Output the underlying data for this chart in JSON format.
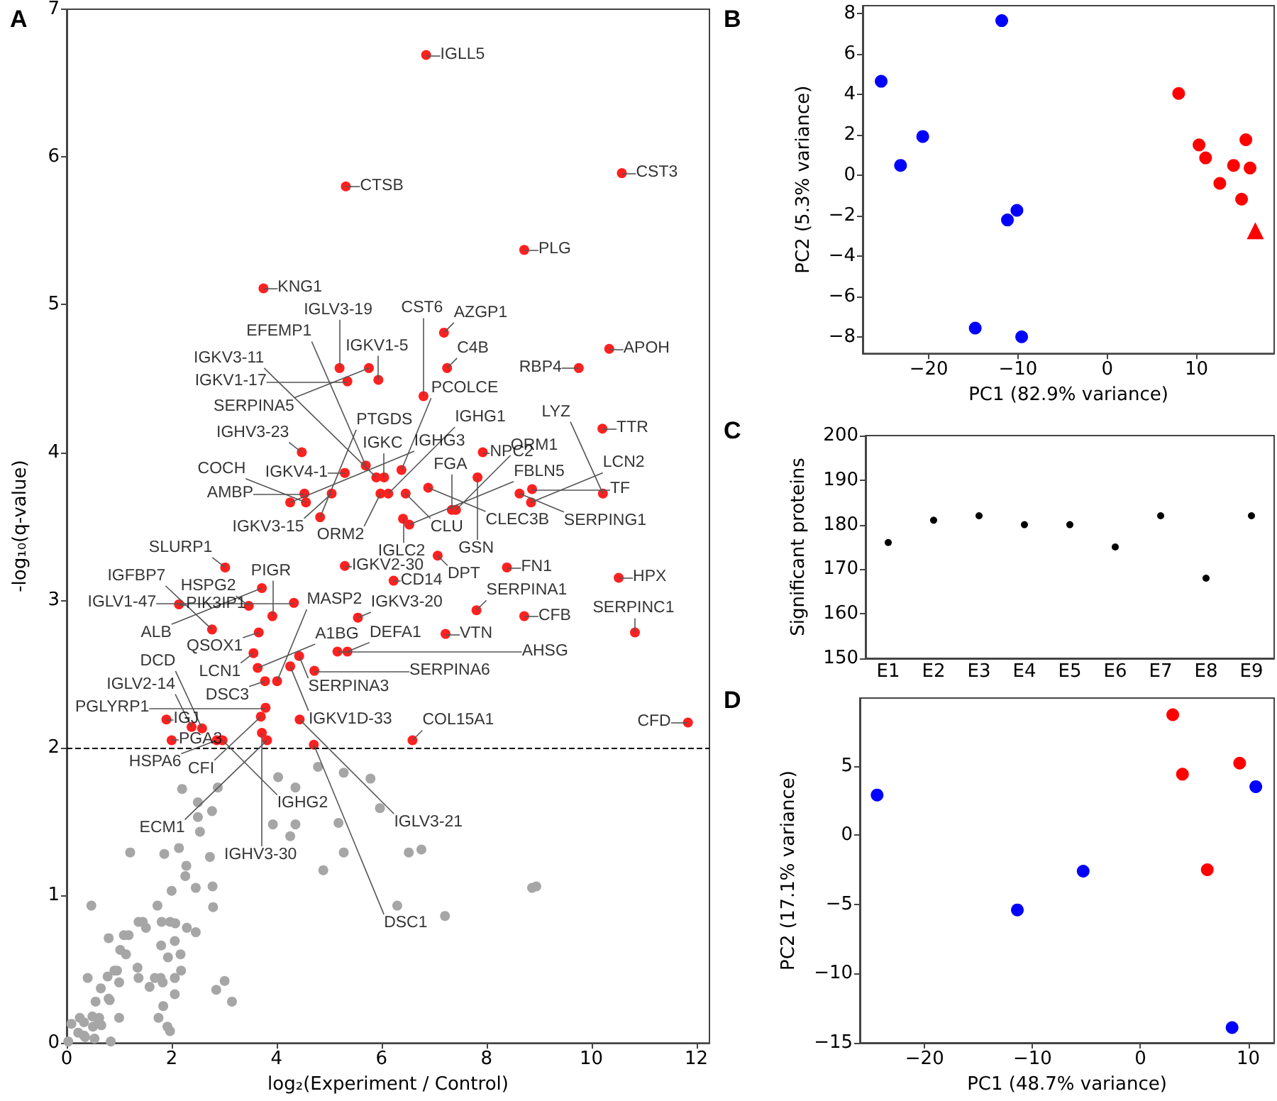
{
  "chart_data": [
    {
      "type": "scatter",
      "title": "A",
      "xlabel": "log₂(Experiment / Control)",
      "ylabel": "-log₁₀(q-value)",
      "xlim": [
        0,
        12.25
      ],
      "ylim": [
        0,
        7
      ],
      "xticks": [
        0,
        2,
        4,
        6,
        8,
        10,
        12
      ],
      "yticks": [
        0,
        1,
        2,
        3,
        4,
        5,
        6,
        7
      ],
      "marker": "circle",
      "series": [
        {
          "color": "#a6a6a6",
          "x": [
            4.79,
            4.03,
            4.36,
            2.88,
            2.2,
            2.5,
            2.77,
            2.5,
            5.28,
            5.79,
            5.97,
            3.93,
            4.36,
            5.18,
            4.26,
            2.54,
            1.21,
            1.86,
            2.14,
            2.73,
            2.28,
            2.26,
            4.89,
            5.28,
            6.52,
            6.76,
            2.0,
            2.46,
            2.78,
            0.47,
            1.73,
            2.79,
            8.87,
            8.95,
            6.3,
            7.21,
            0.8,
            1.09,
            1.18,
            1.37,
            1.45,
            1.51,
            1.02,
            1.13,
            1.81,
            1.97,
            2.07,
            2.29,
            2.46,
            1.8,
            2.06,
            1.93,
            2.17,
            2.18,
            2.06,
            0.4,
            0.65,
            0.55,
            0.78,
            0.82,
            0.91,
            0.96,
            1.0,
            1.35,
            1.37,
            1.58,
            1.68,
            1.79,
            1.83,
            2.06,
            2.85,
            3.01,
            3.15,
            1.75,
            1.84,
            1.92,
            1.97,
            1.0,
            0.8,
            0.09,
            0.25,
            0.33,
            0.22,
            0.49,
            0.61,
            0.33,
            0.5,
            0.62,
            0.66,
            0.35,
            0.84,
            0.03,
            0.53
          ],
          "values": [
            1.87,
            1.8,
            1.73,
            1.73,
            1.72,
            1.63,
            1.57,
            1.53,
            1.83,
            1.79,
            1.59,
            1.48,
            1.48,
            1.49,
            1.4,
            1.43,
            1.29,
            1.28,
            1.32,
            1.26,
            1.2,
            1.13,
            1.17,
            1.29,
            1.29,
            1.31,
            1.03,
            1.05,
            1.06,
            0.93,
            0.93,
            0.92,
            1.05,
            1.06,
            0.93,
            0.86,
            0.71,
            0.73,
            0.73,
            0.82,
            0.82,
            0.78,
            0.63,
            0.6,
            0.82,
            0.82,
            0.81,
            0.78,
            0.75,
            0.66,
            0.69,
            0.58,
            0.6,
            0.49,
            0.44,
            0.44,
            0.37,
            0.28,
            0.45,
            0.29,
            0.49,
            0.49,
            0.41,
            0.51,
            0.44,
            0.38,
            0.44,
            0.44,
            0.41,
            0.33,
            0.36,
            0.42,
            0.28,
            0.17,
            0.25,
            0.11,
            0.08,
            0.17,
            0.3,
            0.13,
            0.17,
            0.14,
            0.07,
            0.18,
            0.15,
            0.05,
            0.11,
            0.17,
            0.12,
            0.04,
            0.01,
            0.01,
            0.03
          ]
        },
        {
          "color": "#ff2020",
          "x": [
            6.85,
            5.32,
            10.58,
            8.72,
            3.75,
            7.19,
            10.34,
            5.2,
            5.76,
            5.94,
            5.35,
            7.25,
            9.76,
            6.8,
            10.21,
            4.48,
            5.9,
            5.7,
            6.05,
            6.38,
            7.93,
            5.3,
            5.05,
            4.53,
            5.98,
            6.13,
            6.46,
            6.89,
            7.83,
            8.87,
            8.63,
            10.22,
            8.85,
            4.26,
            4.56,
            4.83,
            7.34,
            7.42,
            6.41,
            6.53,
            7.07,
            8.39,
            10.52,
            5.3,
            6.23,
            3.02,
            3.72,
            4.33,
            2.14,
            3.47,
            2.77,
            3.92,
            5.55,
            7.81,
            8.72,
            10.83,
            7.22,
            3.66,
            5.16,
            5.35,
            4.43,
            3.56,
            3.64,
            4.26,
            4.72,
            3.78,
            4.01,
            3.79,
            3.7,
            4.44,
            1.9,
            11.84,
            2.86,
            2.97,
            2.38,
            2.58,
            2.0,
            3.72,
            3.82,
            4.71,
            6.59
          ],
          "values": [
            6.69,
            5.8,
            5.89,
            5.37,
            5.11,
            4.81,
            4.7,
            4.57,
            4.57,
            4.49,
            4.48,
            4.57,
            4.57,
            4.38,
            4.16,
            4.0,
            3.83,
            3.91,
            3.83,
            3.88,
            4.0,
            3.86,
            3.72,
            3.72,
            3.72,
            3.72,
            3.72,
            3.76,
            3.83,
            3.75,
            3.72,
            3.72,
            3.66,
            3.66,
            3.66,
            3.56,
            3.61,
            3.61,
            3.55,
            3.51,
            3.3,
            3.22,
            3.15,
            3.23,
            3.13,
            3.22,
            3.08,
            2.98,
            2.97,
            2.96,
            2.8,
            2.89,
            2.88,
            2.93,
            2.89,
            2.78,
            2.77,
            2.78,
            2.65,
            2.65,
            2.62,
            2.64,
            2.54,
            2.55,
            2.52,
            2.45,
            2.45,
            2.27,
            2.21,
            2.19,
            2.19,
            2.17,
            2.05,
            2.05,
            2.14,
            2.13,
            2.05,
            2.1,
            2.05,
            2.02,
            2.05
          ]
        }
      ],
      "ref_lines": [
        {
          "axis": "y",
          "value": 2,
          "color": "#000000",
          "line_style": "dashed"
        }
      ],
      "annotations": [
        {
          "text": "IGLL5",
          "x": 6.85,
          "y": 6.69
        },
        {
          "text": "CTSB",
          "x": 5.32,
          "y": 5.8
        },
        {
          "text": "CST3",
          "x": 10.58,
          "y": 5.89
        },
        {
          "text": "PLG",
          "x": 8.72,
          "y": 5.37
        },
        {
          "text": "KNG1",
          "x": 3.75,
          "y": 5.11
        },
        {
          "text": "AZGP1",
          "x": 7.19,
          "y": 4.81
        },
        {
          "text": "APOH",
          "x": 10.34,
          "y": 4.7
        },
        {
          "text": "IGLV3-19",
          "x": 5.2,
          "y": 4.57
        },
        {
          "text": "SERPINA5",
          "x": 5.76,
          "y": 4.57
        },
        {
          "text": "IGKV1-5",
          "x": 5.94,
          "y": 4.49
        },
        {
          "text": "IGKV1-17",
          "x": 5.35,
          "y": 4.48
        },
        {
          "text": "C4B",
          "x": 7.25,
          "y": 4.57
        },
        {
          "text": "RBP4",
          "x": 9.76,
          "y": 4.57
        },
        {
          "text": "CST6",
          "x": 6.8,
          "y": 4.38
        },
        {
          "text": "TTR",
          "x": 10.21,
          "y": 4.16
        },
        {
          "text": "IGHV3-23",
          "x": 4.48,
          "y": 4.0
        },
        {
          "text": "IGKV3-11",
          "x": 5.9,
          "y": 3.83
        },
        {
          "text": "EFEMP1",
          "x": 5.7,
          "y": 3.91
        },
        {
          "text": "IGKC",
          "x": 6.05,
          "y": 3.83
        },
        {
          "text": "PCOLCE",
          "x": 6.38,
          "y": 3.88
        },
        {
          "text": "NPC2",
          "x": 7.93,
          "y": 4.0
        },
        {
          "text": "IGKV4-1",
          "x": 5.3,
          "y": 3.86
        },
        {
          "text": "IGKV3-15",
          "x": 5.05,
          "y": 3.72
        },
        {
          "text": "AMBP",
          "x": 4.53,
          "y": 3.72
        },
        {
          "text": "ORM2",
          "x": 5.98,
          "y": 3.72
        },
        {
          "text": "IGHG1",
          "x": 6.13,
          "y": 3.72
        },
        {
          "text": "CLU",
          "x": 6.46,
          "y": 3.72
        },
        {
          "text": "CLEC3B",
          "x": 6.89,
          "y": 3.76
        },
        {
          "text": "GSN",
          "x": 7.83,
          "y": 3.83
        },
        {
          "text": "TF",
          "x": 8.87,
          "y": 3.75
        },
        {
          "text": "SERPING1",
          "x": 8.63,
          "y": 3.72
        },
        {
          "text": "LYZ",
          "x": 10.22,
          "y": 3.72
        },
        {
          "text": "LCN2",
          "x": 8.85,
          "y": 3.66
        },
        {
          "text": "IGHG3",
          "x": 4.26,
          "y": 3.66
        },
        {
          "text": "COCH",
          "x": 4.56,
          "y": 3.66
        },
        {
          "text": "PTGDS",
          "x": 4.83,
          "y": 3.56
        },
        {
          "text": "FGA",
          "x": 7.34,
          "y": 3.61
        },
        {
          "text": "ORM1",
          "x": 7.42,
          "y": 3.61
        },
        {
          "text": "IGLC2",
          "x": 6.41,
          "y": 3.55
        },
        {
          "text": "FBLN5",
          "x": 6.53,
          "y": 3.51
        },
        {
          "text": "DPT",
          "x": 7.07,
          "y": 3.3
        },
        {
          "text": "FN1",
          "x": 8.39,
          "y": 3.22
        },
        {
          "text": "HPX",
          "x": 10.52,
          "y": 3.15
        },
        {
          "text": "IGKV2-30",
          "x": 5.3,
          "y": 3.23
        },
        {
          "text": "CD14",
          "x": 6.23,
          "y": 3.13
        },
        {
          "text": "SLURP1",
          "x": 3.02,
          "y": 3.22
        },
        {
          "text": "ALB",
          "x": 3.72,
          "y": 3.08
        },
        {
          "text": "IGLV1-47",
          "x": 4.33,
          "y": 2.98
        },
        {
          "text": "PIK3IP1",
          "x": 2.14,
          "y": 2.97
        },
        {
          "text": "HSPG2",
          "x": 3.47,
          "y": 2.96
        },
        {
          "text": "IGFBP7",
          "x": 2.77,
          "y": 2.8
        },
        {
          "text": "PIGR",
          "x": 3.92,
          "y": 2.89
        },
        {
          "text": "IGKV3-20",
          "x": 5.55,
          "y": 2.88
        },
        {
          "text": "SERPINA1",
          "x": 7.81,
          "y": 2.93
        },
        {
          "text": "CFB",
          "x": 8.72,
          "y": 2.89
        },
        {
          "text": "SERPINC1",
          "x": 10.83,
          "y": 2.78
        },
        {
          "text": "VTN",
          "x": 7.22,
          "y": 2.77
        },
        {
          "text": "QSOX1",
          "x": 3.66,
          "y": 2.78
        },
        {
          "text": "AHSG",
          "x": 5.16,
          "y": 2.65
        },
        {
          "text": "DEFA1",
          "x": 5.35,
          "y": 2.65
        },
        {
          "text": "SERPINA3",
          "x": 4.43,
          "y": 2.62
        },
        {
          "text": "LCN1",
          "x": 3.56,
          "y": 2.64
        },
        {
          "text": "A1BG",
          "x": 3.64,
          "y": 2.54
        },
        {
          "text": "IGKV1D-33",
          "x": 4.26,
          "y": 2.55
        },
        {
          "text": "SERPINA6",
          "x": 4.72,
          "y": 2.52
        },
        {
          "text": "DSC3",
          "x": 3.78,
          "y": 2.45
        },
        {
          "text": "MASP2",
          "x": 4.01,
          "y": 2.45
        },
        {
          "text": "PGLYRP1",
          "x": 3.79,
          "y": 2.27
        },
        {
          "text": "CFI",
          "x": 3.7,
          "y": 2.21
        },
        {
          "text": "IGLV3-21",
          "x": 4.44,
          "y": 2.19
        },
        {
          "text": "IGJ",
          "x": 1.9,
          "y": 2.19
        },
        {
          "text": "CFD",
          "x": 11.84,
          "y": 2.17
        },
        {
          "text": "HSPA6",
          "x": 2.86,
          "y": 2.05
        },
        {
          "text": "IGHG2",
          "x": 2.97,
          "y": 2.05
        },
        {
          "text": "IGLV2-14",
          "x": 2.38,
          "y": 2.14
        },
        {
          "text": "DCD",
          "x": 2.58,
          "y": 2.13
        },
        {
          "text": "PGA3",
          "x": 2.0,
          "y": 2.05
        },
        {
          "text": "IGHV3-30",
          "x": 3.72,
          "y": 2.1
        },
        {
          "text": "ECM1",
          "x": 3.82,
          "y": 2.05
        },
        {
          "text": "DSC1",
          "x": 4.71,
          "y": 2.02
        },
        {
          "text": "COL15A1",
          "x": 6.59,
          "y": 2.05
        }
      ]
    },
    {
      "type": "scatter",
      "title": "B",
      "xlabel": "PC1 (82.9% variance)",
      "ylabel": "PC2 (5.3% variance)",
      "xlim": [
        -27.4,
        18.7
      ],
      "ylim": [
        -8.8,
        8.4
      ],
      "xticks": [
        -20,
        -10,
        0,
        10
      ],
      "yticks": [
        -8,
        -6,
        -4,
        -2,
        0,
        2,
        4,
        6,
        8
      ],
      "marker": "circle",
      "series": [
        {
          "color": "#0000ff",
          "x": [
            -11.82,
            -25.33,
            -20.67,
            -23.16,
            -10.12,
            -11.18,
            -14.79,
            -9.59
          ],
          "values": [
            7.66,
            4.66,
            1.93,
            0.5,
            -1.72,
            -2.2,
            -7.55,
            -7.98
          ]
        },
        {
          "color": "#ff0000",
          "x": [
            8.0,
            10.28,
            11.02,
            12.61,
            14.15,
            15.53,
            16.0,
            15.05
          ],
          "values": [
            4.06,
            1.51,
            0.87,
            -0.39,
            0.5,
            1.77,
            0.37,
            -1.17
          ]
        },
        {
          "color": "#ff0000",
          "marker": "triangle",
          "x": [
            16.59
          ],
          "values": [
            -2.73
          ]
        }
      ]
    },
    {
      "type": "scatter",
      "title": "C",
      "ylabel": "Significant proteins",
      "categories": [
        "E1",
        "E2",
        "E3",
        "E4",
        "E5",
        "E6",
        "E7",
        "E8",
        "E9"
      ],
      "values": [
        176,
        181,
        182,
        180,
        180,
        175,
        182,
        168,
        182
      ],
      "color": "#000000",
      "marker": "circle",
      "ylim": [
        150,
        200
      ],
      "yticks": [
        150,
        160,
        170,
        180,
        190,
        200
      ]
    },
    {
      "type": "scatter",
      "title": "D",
      "xlabel": "PC1 (48.7% variance)",
      "ylabel": "PC2 (17.1% variance)",
      "xlim": [
        -26.0,
        12.4
      ],
      "ylim": [
        -15,
        9.9
      ],
      "xticks": [
        -20,
        -10,
        0,
        10
      ],
      "yticks": [
        -15,
        -10,
        -5,
        0,
        5
      ],
      "marker": "circle",
      "series": [
        {
          "color": "#0000ff",
          "x": [
            -24.4,
            -11.4,
            -5.3,
            10.7,
            8.5
          ],
          "values": [
            2.9,
            -5.4,
            -2.6,
            3.5,
            -13.9
          ]
        },
        {
          "color": "#ff0000",
          "x": [
            3.0,
            3.9,
            9.2,
            6.2
          ],
          "values": [
            8.7,
            4.4,
            5.2,
            -2.5
          ]
        }
      ]
    }
  ]
}
